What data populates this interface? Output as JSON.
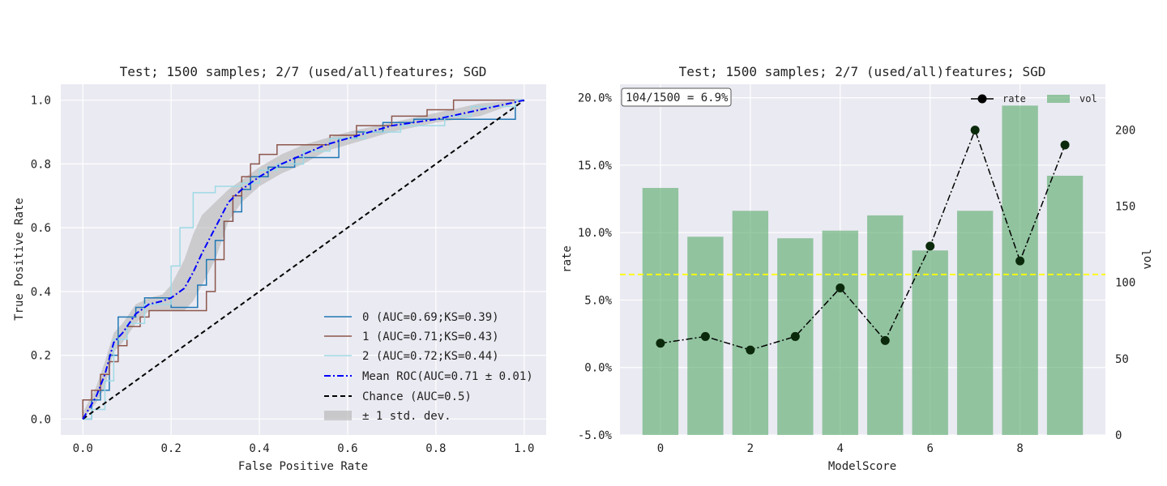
{
  "chart_data": [
    {
      "type": "line",
      "title": "Test; 1500 samples; 2/7 (used/all)features; SGD",
      "xlabel": "False Positive Rate",
      "ylabel": "True Positive Rate",
      "xlim": [
        -0.05,
        1.05
      ],
      "ylim": [
        -0.05,
        1.05
      ],
      "x_ticks": [
        0.0,
        0.2,
        0.4,
        0.6,
        0.8,
        1.0
      ],
      "y_ticks": [
        0.0,
        0.2,
        0.4,
        0.6,
        0.8,
        1.0
      ],
      "x_tick_labels": [
        "0.0",
        "0.2",
        "0.4",
        "0.6",
        "0.8",
        "1.0"
      ],
      "y_tick_labels": [
        "0.0",
        "0.2",
        "0.4",
        "0.6",
        "0.8",
        "1.0"
      ],
      "grid": true,
      "legend_position": "lower-right",
      "series": [
        {
          "name": "0 (AUC=0.69;KS=0.39)",
          "color": "#1f77b4",
          "style": "step",
          "x": [
            0.0,
            0.02,
            0.02,
            0.04,
            0.04,
            0.06,
            0.06,
            0.08,
            0.08,
            0.12,
            0.12,
            0.14,
            0.14,
            0.18,
            0.18,
            0.2,
            0.2,
            0.26,
            0.26,
            0.28,
            0.28,
            0.3,
            0.3,
            0.32,
            0.32,
            0.34,
            0.34,
            0.36,
            0.36,
            0.38,
            0.38,
            0.42,
            0.42,
            0.45,
            0.45,
            0.48,
            0.48,
            0.52,
            0.52,
            0.58,
            0.58,
            0.62,
            0.62,
            0.68,
            0.68,
            0.75,
            0.75,
            0.82,
            0.82,
            0.9,
            0.9,
            0.98,
            0.98,
            1.0
          ],
          "y": [
            0.0,
            0.0,
            0.06,
            0.06,
            0.09,
            0.09,
            0.2,
            0.2,
            0.32,
            0.32,
            0.35,
            0.35,
            0.38,
            0.38,
            0.38,
            0.38,
            0.35,
            0.35,
            0.42,
            0.42,
            0.5,
            0.5,
            0.56,
            0.56,
            0.62,
            0.62,
            0.65,
            0.65,
            0.72,
            0.72,
            0.76,
            0.76,
            0.79,
            0.79,
            0.79,
            0.79,
            0.82,
            0.82,
            0.82,
            0.82,
            0.88,
            0.88,
            0.9,
            0.9,
            0.93,
            0.93,
            0.94,
            0.94,
            0.94,
            0.94,
            0.94,
            0.94,
            1.0,
            1.0
          ]
        },
        {
          "name": "1 (AUC=0.71;KS=0.43)",
          "color": "#8c564b",
          "style": "step",
          "x": [
            0.0,
            0.0,
            0.02,
            0.02,
            0.04,
            0.04,
            0.06,
            0.06,
            0.08,
            0.08,
            0.1,
            0.1,
            0.13,
            0.13,
            0.15,
            0.15,
            0.2,
            0.2,
            0.28,
            0.28,
            0.3,
            0.3,
            0.32,
            0.32,
            0.34,
            0.34,
            0.36,
            0.36,
            0.38,
            0.38,
            0.4,
            0.4,
            0.44,
            0.44,
            0.5,
            0.5,
            0.56,
            0.56,
            0.62,
            0.62,
            0.7,
            0.7,
            0.78,
            0.78,
            0.84,
            0.84,
            0.9,
            0.9,
            1.0
          ],
          "y": [
            0.0,
            0.06,
            0.06,
            0.09,
            0.09,
            0.14,
            0.14,
            0.18,
            0.18,
            0.23,
            0.23,
            0.29,
            0.29,
            0.32,
            0.32,
            0.34,
            0.34,
            0.34,
            0.34,
            0.4,
            0.4,
            0.5,
            0.5,
            0.62,
            0.62,
            0.7,
            0.7,
            0.76,
            0.76,
            0.8,
            0.8,
            0.83,
            0.83,
            0.86,
            0.86,
            0.86,
            0.86,
            0.89,
            0.89,
            0.92,
            0.92,
            0.95,
            0.95,
            0.97,
            0.97,
            1.0,
            1.0,
            1.0,
            1.0
          ]
        },
        {
          "name": "2 (AUC=0.72;KS=0.44)",
          "color": "#9edae5",
          "style": "step",
          "x": [
            0.0,
            0.02,
            0.02,
            0.05,
            0.05,
            0.07,
            0.07,
            0.1,
            0.1,
            0.14,
            0.14,
            0.2,
            0.2,
            0.22,
            0.22,
            0.25,
            0.25,
            0.3,
            0.3,
            0.36,
            0.36,
            0.4,
            0.4,
            0.44,
            0.44,
            0.5,
            0.5,
            0.56,
            0.56,
            0.64,
            0.64,
            0.72,
            0.72,
            0.82,
            0.82,
            0.88,
            0.88,
            0.98,
            0.98,
            1.0
          ],
          "y": [
            0.0,
            0.0,
            0.03,
            0.03,
            0.12,
            0.12,
            0.25,
            0.25,
            0.3,
            0.3,
            0.36,
            0.36,
            0.48,
            0.48,
            0.6,
            0.6,
            0.71,
            0.71,
            0.73,
            0.73,
            0.74,
            0.74,
            0.78,
            0.78,
            0.8,
            0.8,
            0.84,
            0.84,
            0.88,
            0.88,
            0.9,
            0.9,
            0.92,
            0.92,
            0.95,
            0.95,
            0.98,
            0.98,
            1.0,
            1.0
          ]
        }
      ],
      "mean_roc": {
        "name": "Mean ROC(AUC=0.71 ± 0.01)",
        "color": "#0000ff",
        "x": [
          0.0,
          0.03,
          0.05,
          0.07,
          0.09,
          0.12,
          0.15,
          0.18,
          0.2,
          0.23,
          0.25,
          0.27,
          0.3,
          0.33,
          0.36,
          0.4,
          0.45,
          0.5,
          0.55,
          0.6,
          0.7,
          0.8,
          0.9,
          1.0
        ],
        "y": [
          0.0,
          0.07,
          0.14,
          0.24,
          0.27,
          0.33,
          0.36,
          0.37,
          0.38,
          0.41,
          0.46,
          0.52,
          0.6,
          0.68,
          0.72,
          0.76,
          0.8,
          0.83,
          0.86,
          0.88,
          0.92,
          0.94,
          0.97,
          1.0
        ],
        "std_band_name": "± 1 std. dev.",
        "std_band_color": "#b0b0b0",
        "upper": [
          0.02,
          0.1,
          0.18,
          0.27,
          0.3,
          0.36,
          0.38,
          0.39,
          0.42,
          0.5,
          0.58,
          0.64,
          0.68,
          0.72,
          0.75,
          0.79,
          0.83,
          0.86,
          0.88,
          0.9,
          0.93,
          0.96,
          0.99,
          1.0
        ],
        "lower": [
          0.0,
          0.05,
          0.1,
          0.21,
          0.24,
          0.3,
          0.34,
          0.34,
          0.34,
          0.34,
          0.37,
          0.42,
          0.5,
          0.62,
          0.68,
          0.73,
          0.77,
          0.8,
          0.84,
          0.86,
          0.9,
          0.93,
          0.95,
          1.0
        ]
      },
      "chance": {
        "name": "Chance (AUC=0.5)",
        "color": "#000000",
        "x": [
          0.0,
          1.0
        ],
        "y": [
          0.0,
          1.0
        ]
      }
    },
    {
      "type": "bar",
      "title": "Test; 1500 samples; 2/7 (used/all)features; SGD",
      "xlabel": "ModelScore",
      "ylabel": "rate",
      "y2label": "vol",
      "annotation": "104/1500 = 6.9%",
      "x": [
        0,
        1,
        2,
        3,
        4,
        5,
        6,
        7,
        8,
        9
      ],
      "x_ticks": [
        0,
        2,
        4,
        6,
        8
      ],
      "x_tick_labels": [
        "0",
        "2",
        "4",
        "6",
        "8"
      ],
      "xlim": [
        -0.9,
        9.9
      ],
      "rate_ylim": [
        -0.05,
        0.21
      ],
      "rate_ticks": [
        -0.05,
        0.0,
        0.05,
        0.1,
        0.15,
        0.2
      ],
      "rate_tick_labels": [
        "-5.0%",
        "0.0%",
        "5.0%",
        "10.0%",
        "15.0%",
        "20.0%"
      ],
      "vol_ylim": [
        0,
        230
      ],
      "vol_ticks": [
        0,
        50,
        100,
        150,
        200
      ],
      "vol_tick_labels": [
        "0",
        "50",
        "100",
        "150",
        "200"
      ],
      "grid": true,
      "legend_position": "upper-right",
      "series": [
        {
          "name": "vol",
          "axis": "right",
          "type": "bar",
          "color": "#55a868",
          "values": [
            162,
            130,
            147,
            129,
            134,
            144,
            121,
            147,
            216,
            170
          ]
        },
        {
          "name": "rate",
          "axis": "left",
          "type": "line",
          "color": "#000000",
          "values": [
            0.018,
            0.023,
            0.013,
            0.023,
            0.059,
            0.02,
            0.09,
            0.176,
            0.079,
            0.165
          ]
        }
      ],
      "reference_line": {
        "y": 0.069,
        "color": "#ffff00"
      }
    }
  ]
}
